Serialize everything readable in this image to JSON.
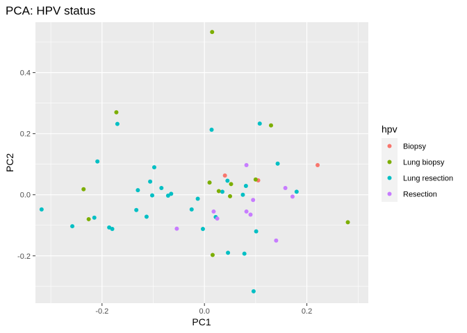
{
  "chart_data": {
    "type": "scatter",
    "title": "PCA: HPV status",
    "xlabel": "PC1",
    "ylabel": "PC2",
    "xlim": [
      -0.33,
      0.32
    ],
    "ylim": [
      -0.355,
      0.565
    ],
    "xticks": [
      -0.2,
      -0.1,
      0.0,
      0.1,
      0.2
    ],
    "xtick_labels": [
      "-0.2",
      "0.0",
      "0.2"
    ],
    "xtick_label_values": [
      -0.2,
      0.0,
      0.2
    ],
    "yticks": [
      -0.3,
      -0.2,
      -0.1,
      0.0,
      0.1,
      0.2,
      0.3,
      0.4,
      0.5
    ],
    "ytick_labels": [
      "-0.2",
      "0.0",
      "0.2",
      "0.4"
    ],
    "ytick_label_values": [
      -0.2,
      0.0,
      0.2,
      0.4
    ],
    "grid": true,
    "legend_title": "hpv",
    "legend_position": "right",
    "series": [
      {
        "name": "Biopsy",
        "color": "#F8766D",
        "points": [
          [
            0.04,
            0.063
          ],
          [
            0.105,
            0.047
          ],
          [
            0.221,
            0.097
          ]
        ]
      },
      {
        "name": "Lung biopsy",
        "color": "#7CAE00",
        "points": [
          [
            0.015,
            0.533
          ],
          [
            -0.172,
            0.27
          ],
          [
            0.13,
            0.227
          ],
          [
            -0.236,
            0.018
          ],
          [
            -0.226,
            -0.08
          ],
          [
            0.01,
            0.04
          ],
          [
            0.028,
            0.012
          ],
          [
            0.052,
            0.035
          ],
          [
            0.05,
            -0.005
          ],
          [
            0.1,
            0.05
          ],
          [
            0.016,
            -0.197
          ],
          [
            0.28,
            -0.09
          ]
        ]
      },
      {
        "name": "Lung resection",
        "color": "#00BFC4",
        "points": [
          [
            -0.17,
            0.232
          ],
          [
            0.014,
            0.213
          ],
          [
            0.108,
            0.233
          ],
          [
            -0.209,
            0.109
          ],
          [
            -0.098,
            0.09
          ],
          [
            0.143,
            0.102
          ],
          [
            -0.106,
            0.043
          ],
          [
            -0.084,
            0.022
          ],
          [
            -0.071,
            -0.003
          ],
          [
            -0.065,
            0.003
          ],
          [
            -0.102,
            -0.002
          ],
          [
            -0.13,
            0.015
          ],
          [
            -0.013,
            -0.013
          ],
          [
            -0.025,
            -0.048
          ],
          [
            0.045,
            0.046
          ],
          [
            0.035,
            0.01
          ],
          [
            0.075,
            0.0
          ],
          [
            0.081,
            0.029
          ],
          [
            0.18,
            0.01
          ],
          [
            -0.318,
            -0.048
          ],
          [
            -0.258,
            -0.103
          ],
          [
            -0.215,
            -0.075
          ],
          [
            -0.186,
            -0.107
          ],
          [
            -0.18,
            -0.112
          ],
          [
            -0.133,
            -0.05
          ],
          [
            -0.113,
            -0.072
          ],
          [
            -0.003,
            -0.112
          ],
          [
            0.022,
            -0.073
          ],
          [
            0.046,
            -0.19
          ],
          [
            0.078,
            -0.193
          ],
          [
            0.101,
            -0.12
          ],
          [
            0.096,
            -0.316
          ]
        ]
      },
      {
        "name": "Resection",
        "color": "#C77CFF",
        "points": [
          [
            0.082,
            0.097
          ],
          [
            0.158,
            0.022
          ],
          [
            0.172,
            -0.006
          ],
          [
            0.095,
            -0.017
          ],
          [
            0.018,
            -0.055
          ],
          [
            0.082,
            -0.055
          ],
          [
            0.09,
            -0.065
          ],
          [
            0.025,
            -0.078
          ],
          [
            -0.054,
            -0.111
          ],
          [
            0.14,
            -0.15
          ]
        ]
      }
    ]
  }
}
